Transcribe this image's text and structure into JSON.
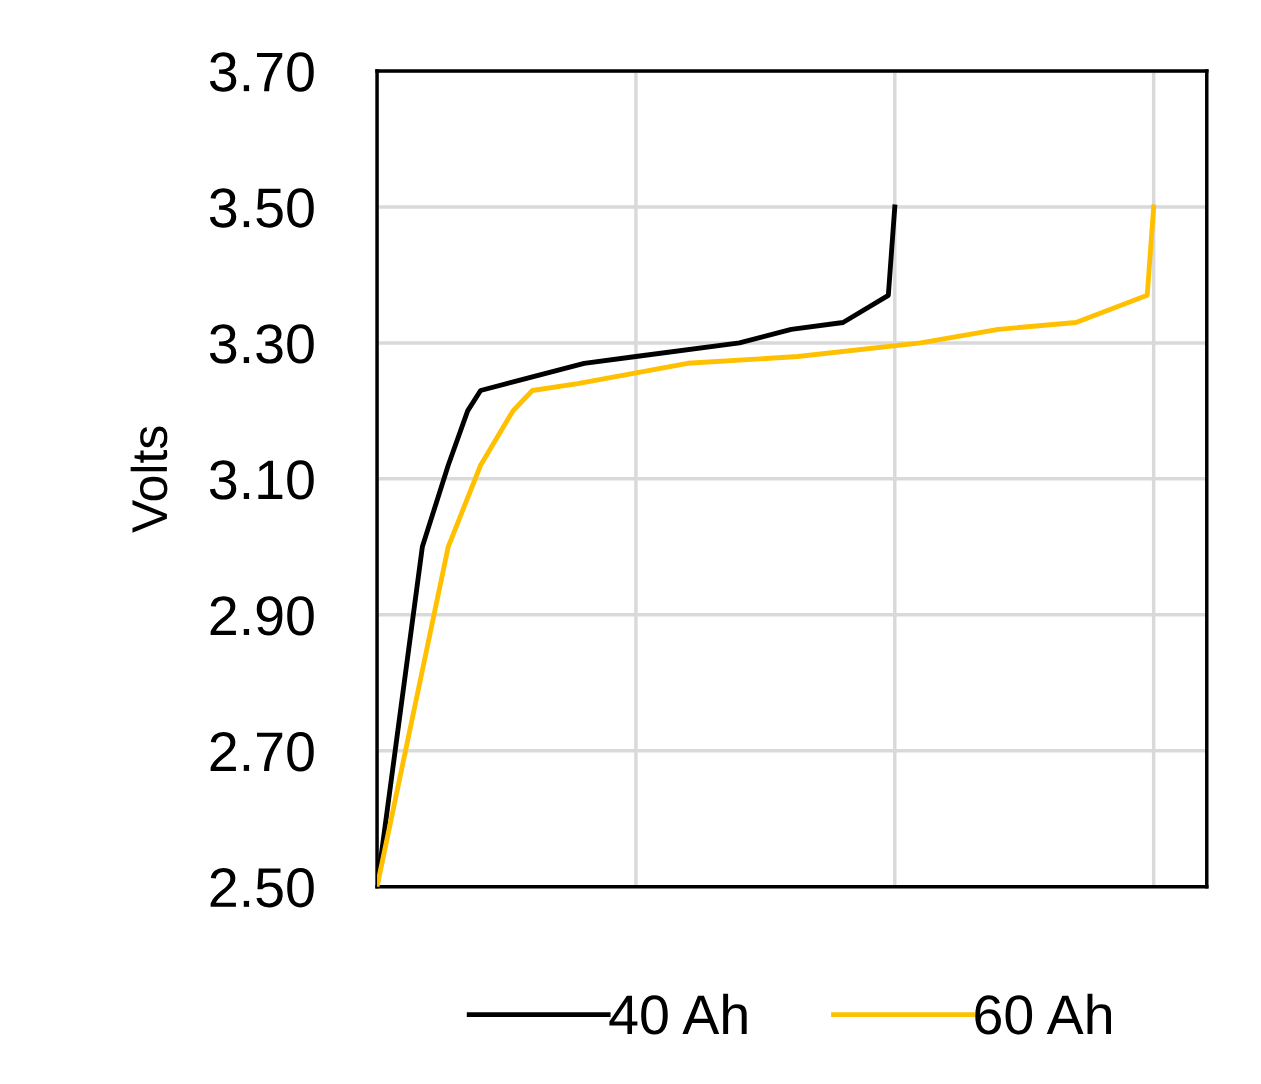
{
  "chart_data": {
    "type": "line",
    "ylabel": "Volts",
    "categories": [
      null,
      null,
      null,
      null,
      null,
      null,
      null,
      null,
      null,
      null,
      null,
      null,
      null,
      null,
      null,
      null,
      null,
      null,
      null,
      null,
      null,
      null,
      null,
      null,
      null,
      null,
      null,
      null,
      null,
      null,
      null,
      null,
      null,
      null,
      null,
      null,
      null,
      null,
      null,
      null,
      null,
      null,
      null,
      null,
      null,
      null,
      null,
      null,
      null,
      null,
      null,
      null,
      null,
      null,
      null,
      null,
      null,
      null,
      null,
      null,
      null,
      null,
      null,
      null,
      null,
      null,
      null,
      null,
      null,
      null,
      null,
      null,
      null,
      null,
      null,
      null,
      null,
      null,
      null,
      null,
      null,
      null,
      null,
      null,
      null,
      null,
      null,
      null,
      null,
      null,
      null,
      null,
      null,
      null,
      null,
      null,
      null,
      null,
      null,
      null,
      null,
      null,
      null,
      null,
      null,
      null,
      null,
      null,
      null,
      null,
      null,
      null,
      null,
      null,
      null,
      null,
      null,
      null,
      null,
      null,
      null,
      null,
      null,
      null,
      null,
      null,
      null,
      null,
      null
    ],
    "ylim": [
      2.5,
      3.7
    ],
    "yticks": [
      {
        "value": 2.5,
        "label": "2.50"
      },
      {
        "value": 2.7,
        "label": "2.70"
      },
      {
        "value": 2.9,
        "label": "2.90"
      },
      {
        "value": 3.1,
        "label": "3.10"
      },
      {
        "value": 3.3,
        "label": "3.30"
      },
      {
        "value": 3.5,
        "label": "3.50"
      },
      {
        "value": 3.7,
        "label": "3.70"
      }
    ],
    "grid": true,
    "legend": "bottom",
    "marker": "none",
    "line_style": "solid",
    "series": [
      {
        "name": "40 Ah",
        "color": "#000000",
        "values": [
          2.5,
          null,
          null,
          null,
          null,
          null,
          null,
          3.0,
          null,
          null,
          null,
          3.12,
          null,
          null,
          3.2,
          null,
          3.23,
          null,
          null,
          null,
          null,
          null,
          null,
          null,
          3.25,
          null,
          null,
          null,
          null,
          null,
          null,
          null,
          3.27,
          null,
          null,
          null,
          null,
          null,
          null,
          null,
          3.28,
          null,
          null,
          null,
          null,
          null,
          null,
          null,
          null,
          null,
          null,
          null,
          null,
          null,
          null,
          null,
          3.3,
          null,
          null,
          null,
          null,
          null,
          null,
          null,
          3.32,
          null,
          null,
          null,
          null,
          null,
          null,
          null,
          3.33,
          null,
          null,
          null,
          null,
          null,
          null,
          3.37,
          3.5,
          null,
          null,
          null,
          null,
          null,
          null,
          null,
          null,
          null,
          null,
          null,
          null,
          null,
          null,
          null,
          null,
          null,
          null,
          null,
          null,
          null,
          null,
          null,
          null,
          null,
          null,
          null,
          null,
          null,
          null,
          null,
          null,
          null,
          null,
          null,
          null,
          null,
          null,
          null,
          null,
          null,
          null,
          null,
          null,
          null,
          null,
          null,
          null
        ]
      },
      {
        "name": "60 Ah",
        "color": "#ffc000",
        "values": [
          2.5,
          null,
          null,
          null,
          null,
          null,
          null,
          null,
          null,
          null,
          null,
          3.0,
          null,
          null,
          null,
          null,
          3.12,
          null,
          null,
          null,
          null,
          3.2,
          null,
          null,
          3.23,
          null,
          null,
          null,
          null,
          null,
          null,
          3.24,
          null,
          null,
          null,
          null,
          null,
          null,
          null,
          null,
          null,
          null,
          null,
          null,
          null,
          null,
          null,
          null,
          3.27,
          null,
          null,
          null,
          null,
          null,
          null,
          null,
          null,
          null,
          null,
          null,
          null,
          null,
          null,
          null,
          null,
          3.28,
          null,
          null,
          null,
          null,
          null,
          null,
          null,
          null,
          null,
          null,
          null,
          null,
          null,
          null,
          null,
          null,
          null,
          null,
          3.3,
          null,
          null,
          null,
          null,
          null,
          null,
          null,
          null,
          null,
          null,
          null,
          3.32,
          null,
          null,
          null,
          null,
          null,
          null,
          null,
          null,
          null,
          null,
          null,
          3.33,
          null,
          null,
          null,
          null,
          null,
          null,
          null,
          null,
          null,
          null,
          3.37,
          3.5,
          null,
          null,
          null,
          null,
          null,
          null,
          null,
          null
        ]
      }
    ]
  }
}
